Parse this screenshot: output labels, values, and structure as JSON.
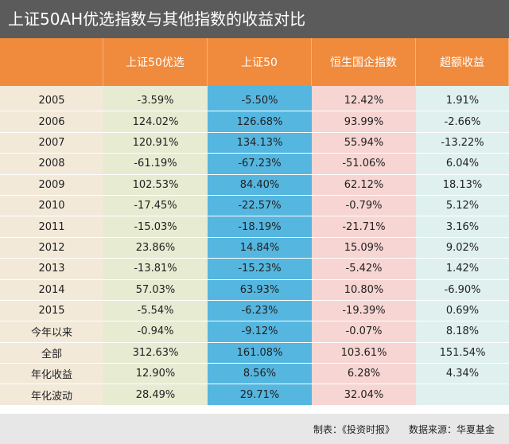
{
  "title": "上证50AH优选指数与其他指数的收益对比",
  "headers": [
    "",
    "上证50优选",
    "上证50",
    "恒生国企指数",
    "超额收益"
  ],
  "rows": [
    {
      "label": "2005",
      "values": [
        "-3.59%",
        "-5.50%",
        "12.42%",
        "1.91%"
      ]
    },
    {
      "label": "2006",
      "values": [
        "124.02%",
        "126.68%",
        "93.99%",
        "-2.66%"
      ]
    },
    {
      "label": "2007",
      "values": [
        "120.91%",
        "134.13%",
        "55.94%",
        "-13.22%"
      ]
    },
    {
      "label": "2008",
      "values": [
        "-61.19%",
        "-67.23%",
        "-51.06%",
        "6.04%"
      ]
    },
    {
      "label": "2009",
      "values": [
        "102.53%",
        "84.40%",
        "62.12%",
        "18.13%"
      ]
    },
    {
      "label": "2010",
      "values": [
        "-17.45%",
        "-22.57%",
        "-0.79%",
        "5.12%"
      ]
    },
    {
      "label": "2011",
      "values": [
        "-15.03%",
        "-18.19%",
        "-21.71%",
        "3.16%"
      ]
    },
    {
      "label": "2012",
      "values": [
        "23.86%",
        "14.84%",
        "15.09%",
        "9.02%"
      ]
    },
    {
      "label": "2013",
      "values": [
        "-13.81%",
        "-15.23%",
        "-5.42%",
        "1.42%"
      ]
    },
    {
      "label": "2014",
      "values": [
        "57.03%",
        "63.93%",
        "10.80%",
        "-6.90%"
      ]
    },
    {
      "label": "2015",
      "values": [
        "-5.54%",
        "-6.23%",
        "-19.39%",
        "0.69%"
      ]
    },
    {
      "label": "今年以来",
      "values": [
        "-0.94%",
        "-9.12%",
        "-0.07%",
        "8.18%"
      ]
    },
    {
      "label": "全部",
      "values": [
        "312.63%",
        "161.08%",
        "103.61%",
        "151.54%"
      ]
    },
    {
      "label": "年化收益",
      "values": [
        "12.90%",
        "8.56%",
        "6.28%",
        "4.34%"
      ]
    },
    {
      "label": "年化波动",
      "values": [
        "28.49%",
        "29.71%",
        "32.04%",
        ""
      ]
    }
  ],
  "footer": {
    "maker": "制表：《投资时报》",
    "source": "数据来源：华夏基金"
  },
  "colors": {
    "title_bg": "#5b5b5b",
    "header_bg": "#f08a3c",
    "col0_bg": "#f2e9d9",
    "col1_bg": "#e6ebd2",
    "col2_bg": "#55b6e0",
    "col3_bg": "#f6d5d3",
    "col4_bg": "#dff0ef",
    "footer_bg": "#e7e7e7"
  }
}
